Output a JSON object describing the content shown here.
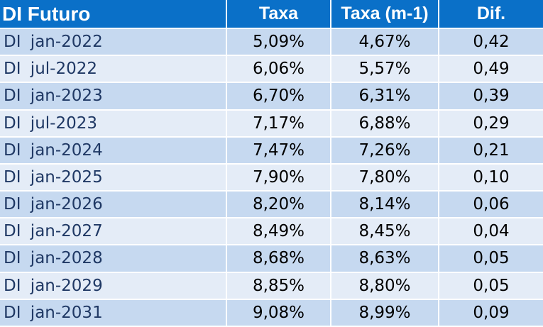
{
  "table": {
    "headers": {
      "name": "DI Futuro",
      "taxa": "Taxa",
      "taxa_prev": "Taxa (m-1)",
      "dif": "Dif."
    },
    "rows": [
      {
        "name": "DI jan-2022",
        "taxa": "5,09%",
        "taxa_prev": "4,67%",
        "dif": "0,42"
      },
      {
        "name": "DI jul-2022",
        "taxa": "6,06%",
        "taxa_prev": "5,57%",
        "dif": "0,49"
      },
      {
        "name": "DI jan-2023",
        "taxa": "6,70%",
        "taxa_prev": "6,31%",
        "dif": "0,39"
      },
      {
        "name": "DI jul-2023",
        "taxa": "7,17%",
        "taxa_prev": "6,88%",
        "dif": "0,29"
      },
      {
        "name": "DI jan-2024",
        "taxa": "7,47%",
        "taxa_prev": "7,26%",
        "dif": "0,21"
      },
      {
        "name": "DI jan-2025",
        "taxa": "7,90%",
        "taxa_prev": "7,80%",
        "dif": "0,10"
      },
      {
        "name": "DI jan-2026",
        "taxa": "8,20%",
        "taxa_prev": "8,14%",
        "dif": "0,06"
      },
      {
        "name": "DI jan-2027",
        "taxa": "8,49%",
        "taxa_prev": "8,45%",
        "dif": "0,04"
      },
      {
        "name": "DI jan-2028",
        "taxa": "8,68%",
        "taxa_prev": "8,63%",
        "dif": "0,05"
      },
      {
        "name": "DI jan-2029",
        "taxa": "8,85%",
        "taxa_prev": "8,80%",
        "dif": "0,05"
      },
      {
        "name": "DI jan-2031",
        "taxa": "9,08%",
        "taxa_prev": "8,99%",
        "dif": "0,09"
      }
    ]
  },
  "colors": {
    "header_bg": "#0a70c8",
    "header_text": "#ffffff",
    "row_dark": "#c6d9f0",
    "row_light": "#e4ecf7",
    "name_text": "#1f3864"
  }
}
